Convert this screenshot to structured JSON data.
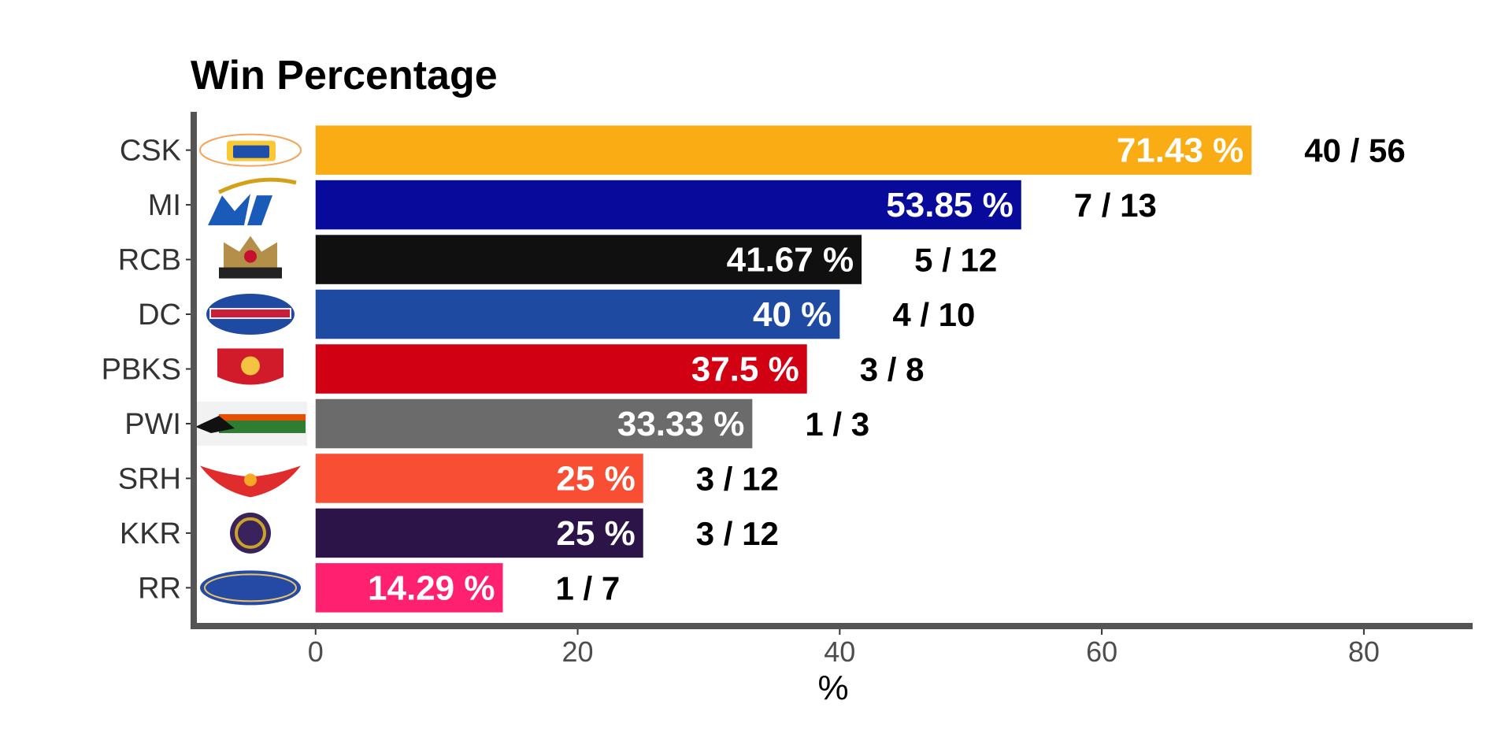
{
  "chart_data": {
    "type": "bar",
    "orientation": "horizontal",
    "title": "Win Percentage",
    "xlabel": "%",
    "ylabel": "",
    "xlim": [
      -9.3,
      88.3
    ],
    "xticks": [
      0,
      20,
      40,
      60,
      80
    ],
    "categories": [
      "CSK",
      "MI",
      "RCB",
      "DC",
      "PBKS",
      "PWI",
      "SRH",
      "KKR",
      "RR"
    ],
    "values": [
      71.43,
      53.85,
      41.67,
      40,
      37.5,
      33.33,
      25,
      25,
      14.29
    ],
    "value_labels": [
      "71.43 %",
      "53.85 %",
      "41.67 %",
      "40 %",
      "37.5 %",
      "33.33 %",
      "25 %",
      "25 %",
      "14.29 %"
    ],
    "record_labels": [
      "40 / 56",
      "7 / 13",
      "5 / 12",
      "4 / 10",
      "3 / 8",
      "1 / 3",
      "3 / 12",
      "3 / 12",
      "1 / 7"
    ],
    "colors": [
      "#FAAC14",
      "#070A9A",
      "#101010",
      "#1E4BA1",
      "#D10013",
      "#6B6B6B",
      "#F84E34",
      "#2C1449",
      "#FF2170"
    ],
    "logos": [
      "csk-logo",
      "mi-logo",
      "rcb-logo",
      "dc-logo",
      "pbks-logo",
      "pwi-logo",
      "srh-logo",
      "kkr-logo",
      "rr-logo"
    ],
    "grid": false,
    "legend": "none"
  }
}
